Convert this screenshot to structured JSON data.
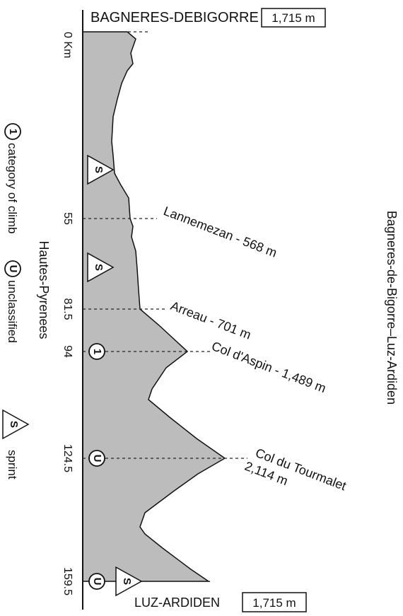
{
  "header": {
    "title": "Bagneres-de-Bigorre–Luz-Ardiden",
    "region": "Hautes-Pyrenees"
  },
  "start": {
    "name": "BAGNERES-DEBIGORRE",
    "elevation": "1,715 m"
  },
  "finish": {
    "name": "LUZ-ARDIDEN",
    "elevation": "1,715 m"
  },
  "distances": [
    "0 Km",
    "55",
    "81.5",
    "94",
    "124.5",
    "159.5"
  ],
  "waypoints": [
    {
      "lines": [
        "Lannemezan - 568 m"
      ]
    },
    {
      "lines": [
        "Arreau - 701 m"
      ]
    },
    {
      "lines": [
        "Col d'Aspin - 1,489 m"
      ]
    },
    {
      "lines": [
        "Col du Tourmalet",
        "2,114 m"
      ]
    }
  ],
  "markers": {
    "sprints": [
      "S",
      "S",
      "S"
    ],
    "climbs": [
      "1",
      "U",
      "U"
    ]
  },
  "legend": [
    {
      "symbol": "1",
      "text": "category of climb"
    },
    {
      "symbol": "U",
      "text": "unclassified"
    },
    {
      "symbol": "S",
      "text": "sprint"
    }
  ]
}
